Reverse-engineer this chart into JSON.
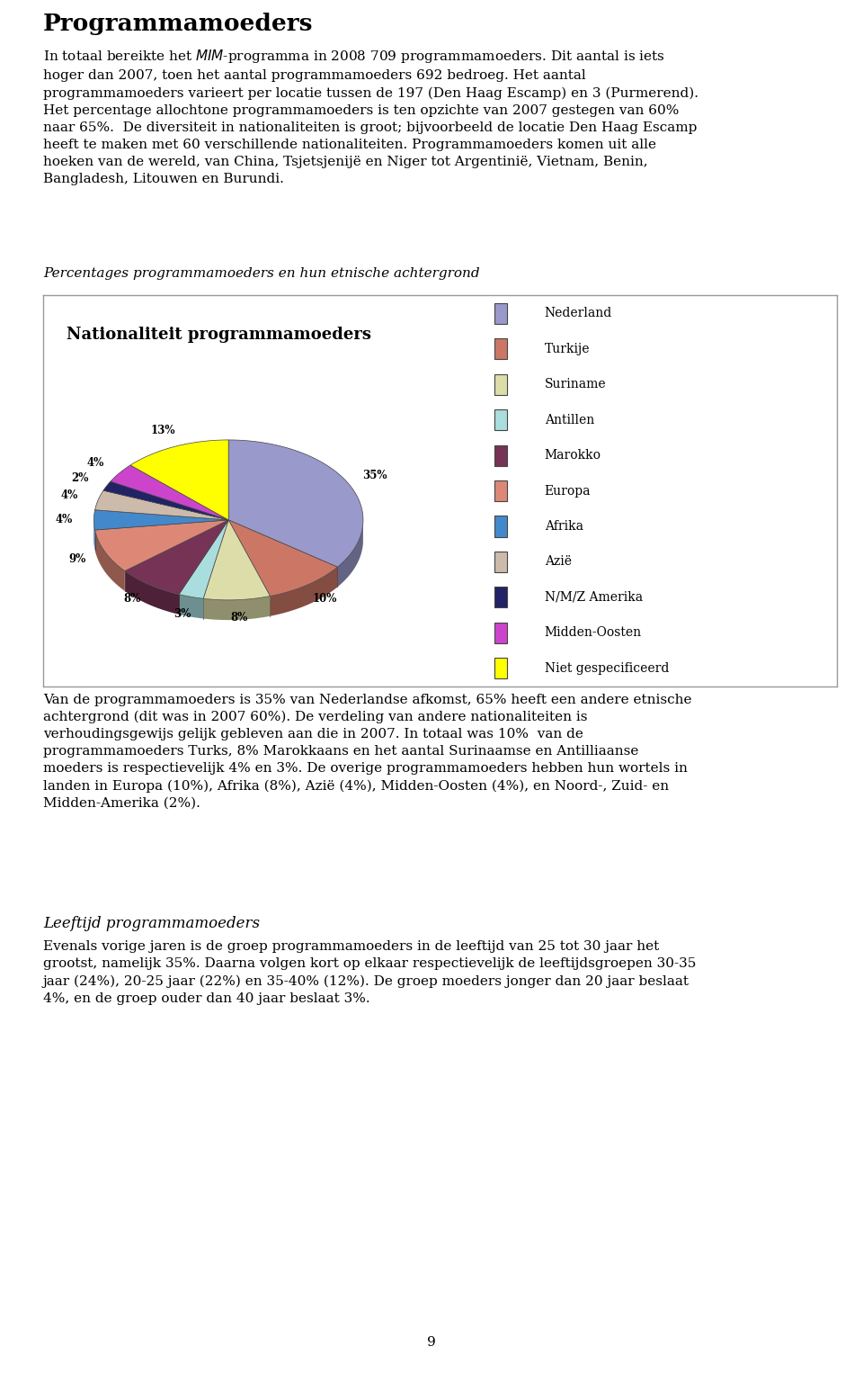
{
  "title": "Nationaliteit programmamoeders",
  "labels": [
    "Nederland",
    "Turkije",
    "Suriname",
    "Antillen",
    "Marokko",
    "Europa",
    "Afrika",
    "Azië",
    "N/M/Z Amerika",
    "Midden-Oosten",
    "Niet gespecificeerd"
  ],
  "sizes": [
    35,
    10,
    8,
    3,
    8,
    9,
    4,
    4,
    2,
    4,
    13
  ],
  "colors": [
    "#9999cc",
    "#cc7766",
    "#ddddaa",
    "#aadddd",
    "#773355",
    "#dd8877",
    "#4488cc",
    "#ccbbaa",
    "#222266",
    "#cc44cc",
    "#ffff00"
  ],
  "chart_bg": "#ffffff",
  "border_color": "#999999",
  "page_number": "9",
  "subtitle": "Percentages programmamoeders en hun etnische achtergrond"
}
